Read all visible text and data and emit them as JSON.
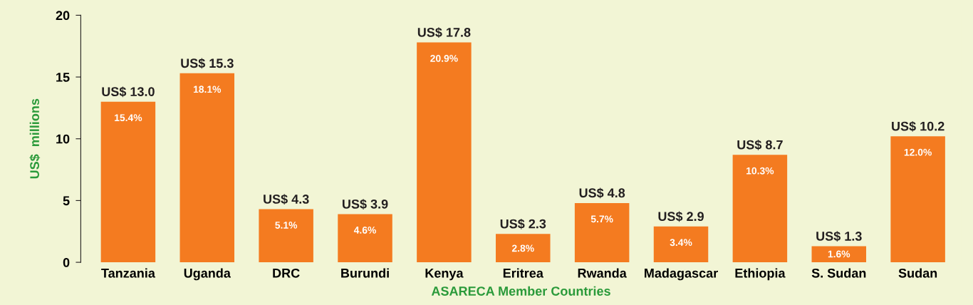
{
  "chart_data": {
    "type": "bar",
    "xlabel": "ASARECA Member Countries",
    "ylabel": "US$  millions",
    "categories": [
      "Tanzania",
      "Uganda",
      "DRC",
      "Burundi",
      "Kenya",
      "Eritrea",
      "Rwanda",
      "Madagascar",
      "Ethiopia",
      "S. Sudan",
      "Sudan"
    ],
    "values": [
      13.0,
      15.3,
      4.3,
      3.9,
      17.8,
      2.3,
      4.8,
      2.9,
      8.7,
      1.3,
      10.2
    ],
    "value_labels": [
      "US$ 13.0",
      "US$ 15.3",
      "US$ 4.3",
      "US$ 3.9",
      "US$ 17.8",
      "US$ 2.3",
      "US$ 4.8",
      "US$ 2.9",
      "US$ 8.7",
      "US$ 1.3",
      "US$ 10.2"
    ],
    "color": "#f47b20",
    "annotations": [
      {
        "text": "15.4%",
        "x": "Tanzania",
        "y": 13.0
      },
      {
        "text": "18.1%",
        "x": "Uganda",
        "y": 15.3
      },
      {
        "text": "5.1%",
        "x": "DRC",
        "y": 4.3
      },
      {
        "text": "4.6%",
        "x": "Burundi",
        "y": 3.9
      },
      {
        "text": "20.9%",
        "x": "Kenya",
        "y": 17.8
      },
      {
        "text": "2.8%",
        "x": "Eritrea",
        "y": 2.3
      },
      {
        "text": "5.7%",
        "x": "Rwanda",
        "y": 4.8
      },
      {
        "text": "3.4%",
        "x": "Madagascar",
        "y": 2.9
      },
      {
        "text": "10.3%",
        "x": "Ethiopia",
        "y": 8.7
      },
      {
        "text": "1.6%",
        "x": "S. Sudan",
        "y": 1.3
      },
      {
        "text": "12.0%",
        "x": "Sudan",
        "y": 10.2
      }
    ],
    "ylim": [
      0,
      20
    ],
    "yticks": [
      0,
      5,
      10,
      15,
      20
    ],
    "grid": false
  }
}
